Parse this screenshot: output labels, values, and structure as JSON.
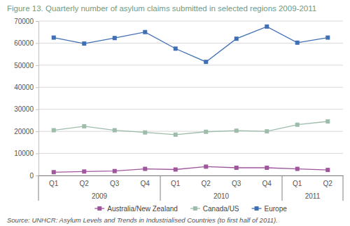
{
  "chart_data": {
    "type": "line",
    "title": "Figure 13. Quarterly number of asylum claims submitted in selected regions 2009-2011",
    "source": "Source: UNHCR: Asylum Levels and Trends in Industrialised Countries (to first half of 2011).",
    "categories": [
      "Q1",
      "Q2",
      "Q3",
      "Q4",
      "Q1",
      "Q2",
      "Q3",
      "Q4",
      "Q1",
      "Q2"
    ],
    "groups": [
      "2009",
      "2009",
      "2009",
      "2009",
      "2010",
      "2010",
      "2010",
      "2010",
      "2011",
      "2011"
    ],
    "series": [
      {
        "name": "Australia/New Zealand",
        "color": "#a0569c",
        "values": [
          1500,
          1800,
          2000,
          3000,
          2700,
          4000,
          3500,
          3500,
          3000,
          2500
        ]
      },
      {
        "name": "Canada/US",
        "color": "#9dbcaa",
        "values": [
          20500,
          22300,
          20500,
          19500,
          18500,
          19800,
          20300,
          20000,
          23000,
          24500
        ]
      },
      {
        "name": "Europe",
        "color": "#3f6fb5",
        "values": [
          62500,
          59800,
          62300,
          65000,
          57500,
          51500,
          62000,
          67500,
          60200,
          62500
        ]
      }
    ],
    "ylim": [
      0,
      70000
    ],
    "yticks": [
      0,
      10000,
      20000,
      30000,
      40000,
      50000,
      60000,
      70000
    ],
    "grid": true,
    "marker": "square",
    "legend": "bottom"
  }
}
